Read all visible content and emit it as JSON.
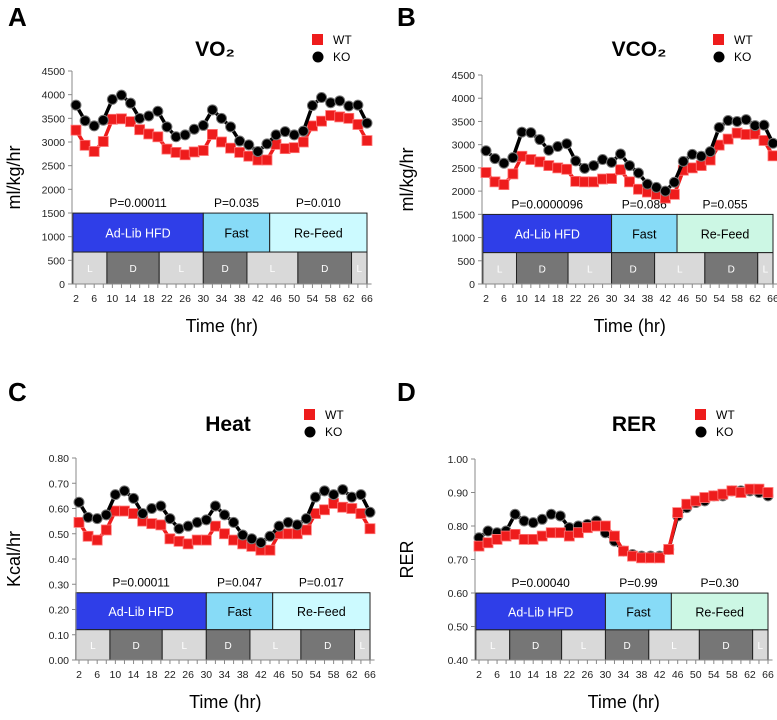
{
  "chart_data": [
    {
      "panel": "A",
      "type": "line",
      "title": "VO₂",
      "xlabel": "Time (hr)",
      "ylabel": "ml/kg/hr",
      "ylim": [
        0,
        4500
      ],
      "yticks": [
        "0",
        "500",
        "1000",
        "1500",
        "2000",
        "2500",
        "3000",
        "3500",
        "4000",
        "4500"
      ],
      "xticks": [
        "2",
        "6",
        "10",
        "14",
        "18",
        "22",
        "26",
        "30",
        "34",
        "38",
        "42",
        "46",
        "50",
        "54",
        "58",
        "62",
        "66"
      ],
      "x": [
        2,
        4,
        6,
        8,
        10,
        12,
        14,
        16,
        18,
        20,
        22,
        24,
        26,
        28,
        30,
        32,
        34,
        36,
        38,
        40,
        42,
        44,
        46,
        48,
        50,
        52,
        54,
        56,
        58,
        60,
        62,
        64,
        66
      ],
      "series": [
        {
          "name": "WT",
          "color": "#ee1c1c",
          "marker": "square",
          "values": [
            3250,
            2930,
            2800,
            3010,
            3480,
            3490,
            3430,
            3260,
            3170,
            3110,
            2850,
            2780,
            2730,
            2790,
            2820,
            3160,
            3000,
            2870,
            2780,
            2700,
            2620,
            2620,
            2950,
            2860,
            2880,
            3000,
            3340,
            3440,
            3560,
            3530,
            3500,
            3370,
            3030
          ]
        },
        {
          "name": "KO",
          "color": "#000000",
          "marker": "circle",
          "values": [
            3780,
            3450,
            3340,
            3460,
            3900,
            3990,
            3820,
            3500,
            3550,
            3650,
            3320,
            3110,
            3150,
            3270,
            3350,
            3680,
            3500,
            3320,
            3020,
            2940,
            2800,
            2960,
            3150,
            3220,
            3150,
            3230,
            3770,
            3940,
            3830,
            3870,
            3760,
            3780,
            3400
          ]
        }
      ],
      "phases": [
        {
          "label": "Ad-Lib HFD",
          "start": 1.3,
          "end": 30,
          "color": "#2f3ee8",
          "text_color": "#ffffff",
          "p_value": "P=0.00011"
        },
        {
          "label": "Fast",
          "start": 30,
          "end": 44.6,
          "color": "#87dbf7",
          "text_color": "#000000",
          "p_value": "P=0.035"
        },
        {
          "label": "Re-Feed",
          "start": 44.6,
          "end": 66,
          "color": "#ccfaff",
          "text_color": "#000000",
          "p_value": "P=0.010"
        }
      ],
      "light_dark": [
        {
          "label": "L",
          "start": 1.3,
          "end": 8.8
        },
        {
          "label": "D",
          "start": 8.8,
          "end": 20.3
        },
        {
          "label": "L",
          "start": 20.3,
          "end": 30
        },
        {
          "label": "D",
          "start": 30,
          "end": 39.6
        },
        {
          "label": "L",
          "start": 39.6,
          "end": 50.8
        },
        {
          "label": "D",
          "start": 50.8,
          "end": 62.6
        },
        {
          "label": "L",
          "start": 62.6,
          "end": 66
        }
      ]
    },
    {
      "panel": "B",
      "type": "line",
      "title": "VCO₂",
      "xlabel": "Time (hr)",
      "ylabel": "ml/kg/hr",
      "ylim": [
        0,
        4500
      ],
      "yticks": [
        "0",
        "500",
        "1000",
        "1500",
        "2000",
        "2500",
        "3000",
        "3500",
        "4000",
        "4500"
      ],
      "xticks": [
        "2",
        "6",
        "10",
        "14",
        "18",
        "22",
        "26",
        "30",
        "34",
        "38",
        "42",
        "46",
        "50",
        "54",
        "58",
        "62",
        "66"
      ],
      "x": [
        2,
        4,
        6,
        8,
        10,
        12,
        14,
        16,
        18,
        20,
        22,
        24,
        26,
        28,
        30,
        32,
        34,
        36,
        38,
        40,
        42,
        44,
        46,
        48,
        50,
        52,
        54,
        56,
        58,
        60,
        62,
        64,
        66
      ],
      "series": [
        {
          "name": "WT",
          "color": "#ee1c1c",
          "marker": "square",
          "values": [
            2400,
            2200,
            2140,
            2370,
            2750,
            2680,
            2630,
            2550,
            2500,
            2470,
            2210,
            2200,
            2200,
            2260,
            2270,
            2460,
            2200,
            2040,
            1980,
            1930,
            1850,
            1930,
            2450,
            2500,
            2550,
            2670,
            2990,
            3120,
            3250,
            3220,
            3230,
            3090,
            2760
          ]
        },
        {
          "name": "KO",
          "color": "#000000",
          "marker": "circle",
          "values": [
            2870,
            2700,
            2600,
            2720,
            3270,
            3260,
            3110,
            2880,
            2960,
            3020,
            2650,
            2490,
            2550,
            2680,
            2620,
            2800,
            2550,
            2390,
            2150,
            2080,
            2000,
            2190,
            2640,
            2790,
            2750,
            2850,
            3370,
            3520,
            3500,
            3540,
            3410,
            3420,
            3030
          ]
        }
      ],
      "phases": [
        {
          "label": "Ad-Lib HFD",
          "start": 1.3,
          "end": 30,
          "color": "#2f3ee8",
          "text_color": "#ffffff",
          "p_value": "P=0.0000096"
        },
        {
          "label": "Fast",
          "start": 30,
          "end": 44.6,
          "color": "#87dbf7",
          "text_color": "#000000",
          "p_value": "P=0.086"
        },
        {
          "label": "Re-Feed",
          "start": 44.6,
          "end": 66,
          "color": "#ccf7e4",
          "text_color": "#000000",
          "p_value": "P=0.055"
        }
      ],
      "light_dark": [
        {
          "label": "L",
          "start": 1.3,
          "end": 8.8
        },
        {
          "label": "D",
          "start": 8.8,
          "end": 20.3
        },
        {
          "label": "L",
          "start": 20.3,
          "end": 30
        },
        {
          "label": "D",
          "start": 30,
          "end": 39.6
        },
        {
          "label": "L",
          "start": 39.6,
          "end": 50.8
        },
        {
          "label": "D",
          "start": 50.8,
          "end": 62.6
        },
        {
          "label": "L",
          "start": 62.6,
          "end": 66
        }
      ]
    },
    {
      "panel": "C",
      "type": "line",
      "title": "Heat",
      "xlabel": "Time (hr)",
      "ylabel": "Kcal/hr",
      "ylim": [
        0,
        0.8
      ],
      "yticks": [
        "0.00",
        "0.10",
        "0.20",
        "0.30",
        "0.40",
        "0.50",
        "0.60",
        "0.70",
        "0.80"
      ],
      "xticks": [
        "2",
        "6",
        "10",
        "14",
        "18",
        "22",
        "26",
        "30",
        "34",
        "38",
        "42",
        "46",
        "50",
        "54",
        "58",
        "62",
        "66"
      ],
      "x": [
        2,
        4,
        6,
        8,
        10,
        12,
        14,
        16,
        18,
        20,
        22,
        24,
        26,
        28,
        30,
        32,
        34,
        36,
        38,
        40,
        42,
        44,
        46,
        48,
        50,
        52,
        54,
        56,
        58,
        60,
        62,
        64,
        66
      ],
      "series": [
        {
          "name": "WT",
          "color": "#ee1c1c",
          "marker": "square",
          "values": [
            0.545,
            0.49,
            0.475,
            0.515,
            0.59,
            0.59,
            0.58,
            0.55,
            0.54,
            0.535,
            0.48,
            0.47,
            0.46,
            0.475,
            0.475,
            0.53,
            0.5,
            0.475,
            0.46,
            0.45,
            0.435,
            0.435,
            0.5,
            0.5,
            0.5,
            0.515,
            0.58,
            0.595,
            0.62,
            0.605,
            0.6,
            0.58,
            0.52
          ]
        },
        {
          "name": "KO",
          "color": "#000000",
          "marker": "circle",
          "values": [
            0.625,
            0.565,
            0.56,
            0.575,
            0.655,
            0.67,
            0.64,
            0.58,
            0.6,
            0.61,
            0.56,
            0.52,
            0.53,
            0.545,
            0.555,
            0.61,
            0.575,
            0.545,
            0.495,
            0.48,
            0.465,
            0.49,
            0.53,
            0.545,
            0.535,
            0.56,
            0.645,
            0.67,
            0.655,
            0.675,
            0.645,
            0.655,
            0.585
          ]
        }
      ],
      "phases": [
        {
          "label": "Ad-Lib HFD",
          "start": 1.3,
          "end": 30,
          "color": "#2f3ee8",
          "text_color": "#ffffff",
          "p_value": "P=0.00011"
        },
        {
          "label": "Fast",
          "start": 30,
          "end": 44.6,
          "color": "#87dbf7",
          "text_color": "#000000",
          "p_value": "P=0.047"
        },
        {
          "label": "Re-Feed",
          "start": 44.6,
          "end": 66,
          "color": "#ccfaff",
          "text_color": "#000000",
          "p_value": "P=0.017"
        }
      ],
      "light_dark": [
        {
          "label": "L",
          "start": 1.3,
          "end": 8.8
        },
        {
          "label": "D",
          "start": 8.8,
          "end": 20.3
        },
        {
          "label": "L",
          "start": 20.3,
          "end": 30
        },
        {
          "label": "D",
          "start": 30,
          "end": 39.6
        },
        {
          "label": "L",
          "start": 39.6,
          "end": 50.8
        },
        {
          "label": "D",
          "start": 50.8,
          "end": 62.6
        },
        {
          "label": "L",
          "start": 62.6,
          "end": 66
        }
      ]
    },
    {
      "panel": "D",
      "type": "line",
      "title": "RER",
      "xlabel": "Time (hr)",
      "ylabel": "RER",
      "ylim": [
        0.4,
        1.0
      ],
      "yticks": [
        "0.40",
        "0.50",
        "0.60",
        "0.70",
        "0.80",
        "0.90",
        "1.00"
      ],
      "xticks": [
        "2",
        "6",
        "10",
        "14",
        "18",
        "22",
        "26",
        "30",
        "34",
        "38",
        "42",
        "46",
        "50",
        "54",
        "58",
        "62",
        "66"
      ],
      "x": [
        2,
        4,
        6,
        8,
        10,
        12,
        14,
        16,
        18,
        20,
        22,
        24,
        26,
        28,
        30,
        32,
        34,
        36,
        38,
        40,
        42,
        44,
        46,
        48,
        50,
        52,
        54,
        56,
        58,
        60,
        62,
        64,
        66
      ],
      "series": [
        {
          "name": "WT",
          "color": "#ee1c1c",
          "marker": "square",
          "values": [
            0.74,
            0.75,
            0.76,
            0.77,
            0.775,
            0.76,
            0.76,
            0.77,
            0.78,
            0.78,
            0.77,
            0.78,
            0.795,
            0.8,
            0.8,
            0.77,
            0.725,
            0.71,
            0.705,
            0.705,
            0.705,
            0.73,
            0.84,
            0.865,
            0.875,
            0.885,
            0.89,
            0.895,
            0.905,
            0.9,
            0.91,
            0.91,
            0.9
          ]
        },
        {
          "name": "KO",
          "color": "#000000",
          "marker": "circle",
          "values": [
            0.765,
            0.785,
            0.78,
            0.785,
            0.835,
            0.815,
            0.81,
            0.82,
            0.835,
            0.83,
            0.795,
            0.8,
            0.805,
            0.815,
            0.78,
            0.755,
            0.725,
            0.715,
            0.71,
            0.71,
            0.71,
            0.73,
            0.83,
            0.855,
            0.87,
            0.875,
            0.89,
            0.89,
            0.905,
            0.905,
            0.905,
            0.9,
            0.89
          ]
        }
      ],
      "phases": [
        {
          "label": "Ad-Lib HFD",
          "start": 1.3,
          "end": 30,
          "color": "#2f3ee8",
          "text_color": "#ffffff",
          "p_value": "P=0.00040"
        },
        {
          "label": "Fast",
          "start": 30,
          "end": 44.6,
          "color": "#87dbf7",
          "text_color": "#000000",
          "p_value": "P=0.99"
        },
        {
          "label": "Re-Feed",
          "start": 44.6,
          "end": 66,
          "color": "#ccf7e4",
          "text_color": "#000000",
          "p_value": "P=0.30"
        }
      ],
      "light_dark": [
        {
          "label": "L",
          "start": 1.3,
          "end": 8.8
        },
        {
          "label": "D",
          "start": 8.8,
          "end": 20.3
        },
        {
          "label": "L",
          "start": 20.3,
          "end": 30
        },
        {
          "label": "D",
          "start": 30,
          "end": 39.6
        },
        {
          "label": "L",
          "start": 39.6,
          "end": 50.8
        },
        {
          "label": "D",
          "start": 50.8,
          "end": 62.6
        },
        {
          "label": "L",
          "start": 62.6,
          "end": 66
        }
      ],
      "light_color": "#d9d9d9",
      "dark_color": "#767676"
    }
  ]
}
